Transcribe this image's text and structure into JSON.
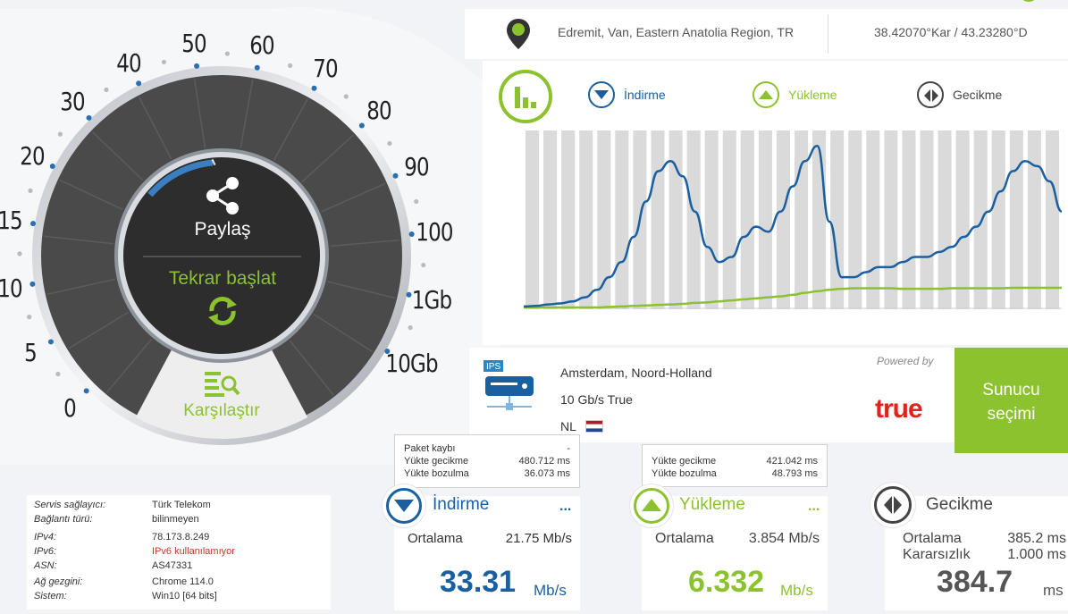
{
  "location": {
    "place": "Edremit, Van, Eastern Anatolia Region, TR",
    "coordinates": "38.42070°Kar / 43.23280°D"
  },
  "gauge": {
    "ticks": [
      "0",
      "5",
      "10",
      "15",
      "20",
      "30",
      "40",
      "50",
      "60",
      "70",
      "80",
      "90",
      "100",
      "1Gb",
      "10Gb"
    ],
    "share_label": "Paylaş",
    "restart_label": "Tekrar başlat",
    "compare_label": "Karşılaştır"
  },
  "legend": {
    "download": "İndirme",
    "upload": "Yükleme",
    "latency": "Gecikme"
  },
  "chart_data": {
    "type": "line",
    "series": [
      {
        "name": "İndirme",
        "values": [
          0.2,
          0.3,
          0.6,
          0.8,
          1.2,
          2,
          3.5,
          6,
          9,
          14,
          21,
          27,
          29,
          26,
          19,
          12,
          9,
          10,
          14,
          16,
          15,
          19,
          24,
          29,
          32,
          17,
          6,
          6,
          7,
          8,
          8,
          9,
          10,
          10,
          11,
          12,
          14,
          16,
          19,
          23,
          27,
          29,
          28,
          25,
          19
        ]
      },
      {
        "name": "Yükleme",
        "values": [
          0,
          0,
          0,
          0,
          0,
          0,
          0,
          0.1,
          0.2,
          0.3,
          0.4,
          0.5,
          0.6,
          0.7,
          0.9,
          1.0,
          1.2,
          1.4,
          1.6,
          1.8,
          2.0,
          2.2,
          2.5,
          2.9,
          3.2,
          3.5,
          3.7,
          3.8,
          3.8,
          3.8,
          3.8,
          3.7,
          3.7,
          3.7,
          3.7,
          3.8,
          3.8,
          3.8,
          3.8,
          3.8,
          3.9,
          3.9,
          3.9,
          3.9,
          3.9
        ]
      }
    ],
    "colors": {
      "download": "#1a5fa0",
      "upload": "#8bc22e",
      "bars": "#dadada"
    },
    "grid": true
  },
  "server": {
    "city": "Amsterdam, Noord-Holland",
    "provider": "10 Gb/s True",
    "country": "NL",
    "ips_label": "IPS",
    "powered_by": "Powered by",
    "brand": "true",
    "select_button": "Sunucu seçimi"
  },
  "tooltip_download": {
    "rows": [
      {
        "k": "Paket kaybı",
        "v": "-"
      },
      {
        "k": "Yükte gecikme",
        "v": "480.712 ms"
      },
      {
        "k": "Yükte bozulma",
        "v": "36.073 ms"
      }
    ]
  },
  "tooltip_upload": {
    "rows": [
      {
        "k": "Yükte gecikme",
        "v": "421.042 ms"
      },
      {
        "k": "Yükte bozulma",
        "v": "48.793 ms"
      }
    ]
  },
  "info": {
    "rows": [
      {
        "k": "Servis sağlayıcı:",
        "v": "Türk Telekom"
      },
      {
        "k": "Bağlantı türü:",
        "v": "bilinmeyen"
      },
      {
        "k": "IPv4:",
        "v": "78.173.8.249"
      },
      {
        "k": "IPv6:",
        "v": "IPv6 kullanılamıyor"
      },
      {
        "k": "ASN:",
        "v": "AS47331"
      },
      {
        "k": "Ağ gezgini:",
        "v": "Chrome 114.0"
      },
      {
        "k": "Sistem:",
        "v": "Win10 [64 bits]"
      }
    ]
  },
  "results": {
    "download": {
      "title": "İndirme",
      "more": "...",
      "avg_label": "Ortalama",
      "avg": "21.75 Mb/s",
      "value": "33.31",
      "unit": "Mb/s"
    },
    "upload": {
      "title": "Yükleme",
      "more": "...",
      "avg_label": "Ortalama",
      "avg": "3.854 Mb/s",
      "value": "6.332",
      "unit": "Mb/s"
    },
    "latency": {
      "title": "Gecikme",
      "avg_label": "Ortalama",
      "avg": "385.2 ms",
      "jitter_label": "Kararsızlık",
      "jitter": "1.000 ms",
      "value": "384.7",
      "unit": "ms"
    }
  }
}
